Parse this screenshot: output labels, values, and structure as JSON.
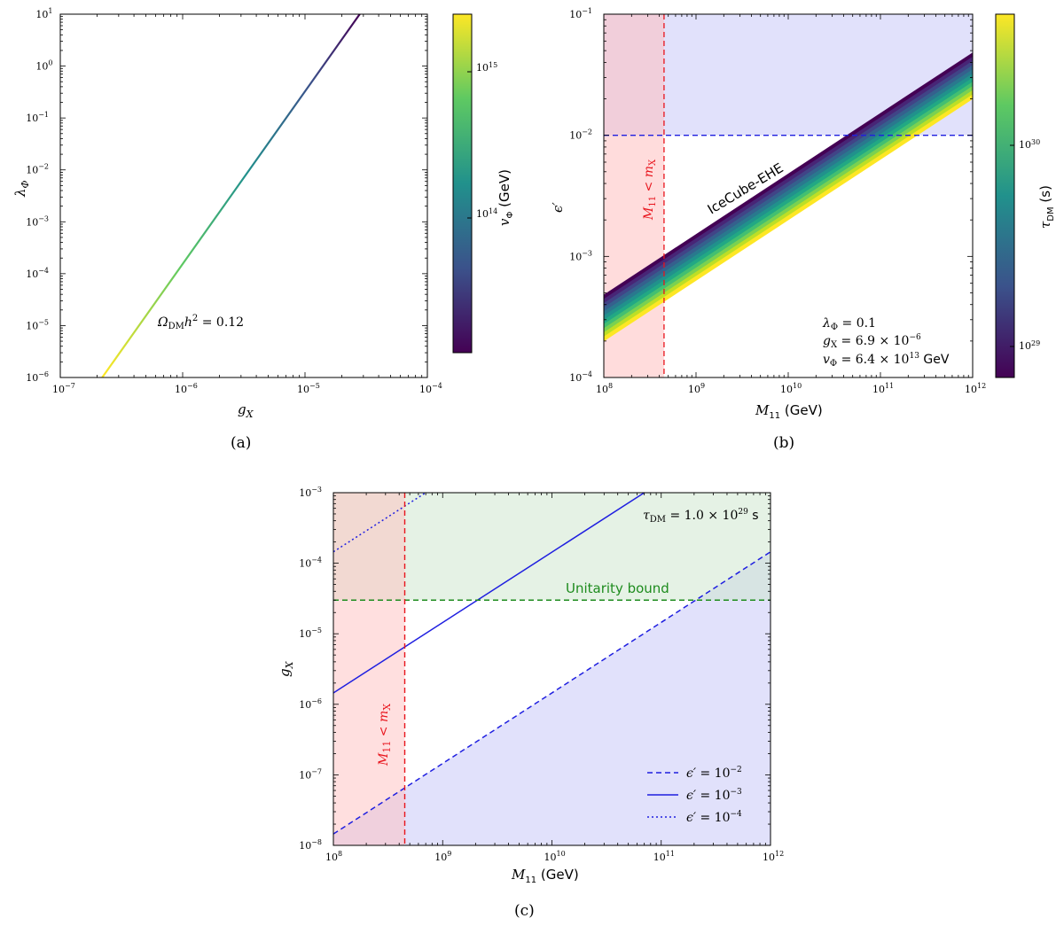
{
  "panels": {
    "a": {
      "caption": "(a)"
    },
    "b": {
      "caption": "(b)"
    },
    "c": {
      "caption": "(c)"
    }
  },
  "chart_data": [
    {
      "id": "a",
      "type": "line",
      "xlabel": "g_X",
      "ylabel": "λ_Φ",
      "xscale": "log",
      "yscale": "log",
      "xlim": [
        1e-07,
        0.0001
      ],
      "ylim": [
        1e-06,
        10
      ],
      "series": [
        {
          "x": [
            2.2e-07,
            2.8e-05
          ],
          "y": [
            1e-06,
            10
          ]
        }
      ],
      "annotation": "Ω_DM h² = 0.12",
      "annotation_color": "#e8141c",
      "colorbar": {
        "label": "v_Φ (GeV)",
        "ticks": [
          "10^14",
          "10^15"
        ],
        "colormap": "viridis"
      }
    },
    {
      "id": "b",
      "type": "area",
      "xlabel": "M₁₁ (GeV)",
      "ylabel": "ε′",
      "xscale": "log",
      "yscale": "log",
      "xlim": [
        100000000.0,
        1000000000000.0
      ],
      "ylim": [
        0.0001,
        0.1
      ],
      "band": {
        "upper": {
          "x": [
            100000000.0,
            1000000000000.0
          ],
          "y": [
            0.00048,
            0.048
          ]
        },
        "lower": {
          "x": [
            100000000.0,
            1000000000000.0
          ],
          "y": [
            0.0002,
            0.02
          ]
        }
      },
      "regions": [
        {
          "label": "M₁₁ < m_X",
          "x_max": 450000000.0,
          "color": "#ffc0c0"
        },
        {
          "label": "IceCube-EHE",
          "y_min": 0.01,
          "color": "#c8c8f8"
        }
      ],
      "lines": [
        {
          "orientation": "vertical",
          "x": 450000000.0,
          "color": "#e8141c",
          "style": "dashed"
        },
        {
          "orientation": "horizontal",
          "y": 0.01,
          "color": "#1f1fe0",
          "style": "dashed"
        }
      ],
      "params": [
        "λ_Φ = 0.1",
        "g_X = 6.9 × 10⁻⁶",
        "v_Φ = 6.4 × 10¹³ GeV"
      ],
      "colorbar": {
        "label": "τ_DM (s)",
        "ticks": [
          "10^29",
          "10^30"
        ],
        "colormap": "viridis"
      }
    },
    {
      "id": "c",
      "type": "line",
      "xlabel": "M₁₁ (GeV)",
      "ylabel": "g_X",
      "xscale": "log",
      "yscale": "log",
      "xlim": [
        100000000.0,
        1000000000000.0
      ],
      "ylim": [
        1e-08,
        0.001
      ],
      "series": [
        {
          "name": "ε′ = 10⁻²",
          "style": "dashed",
          "x": [
            100000000.0,
            1000000000000.0
          ],
          "y": [
            1.45e-08,
            0.000145
          ]
        },
        {
          "name": "ε′ = 10⁻³",
          "style": "solid",
          "x": [
            100000000.0,
            70000000000.0
          ],
          "y": [
            1.45e-06,
            0.001
          ]
        },
        {
          "name": "ε′ = 10⁻⁴",
          "style": "dotted",
          "x": [
            100000000.0,
            700000000.0
          ],
          "y": [
            0.000145,
            0.001
          ]
        }
      ],
      "hline": {
        "y": 3e-05,
        "label": "Unitarity bound",
        "color": "#1e8c1e"
      },
      "vline": {
        "x": 450000000.0,
        "label": "M₁₁ < m_X",
        "color": "#e8141c"
      },
      "tau_label": "τ_DM = 1.0 × 10²⁹ s",
      "legend_position": "bottom-right"
    }
  ]
}
